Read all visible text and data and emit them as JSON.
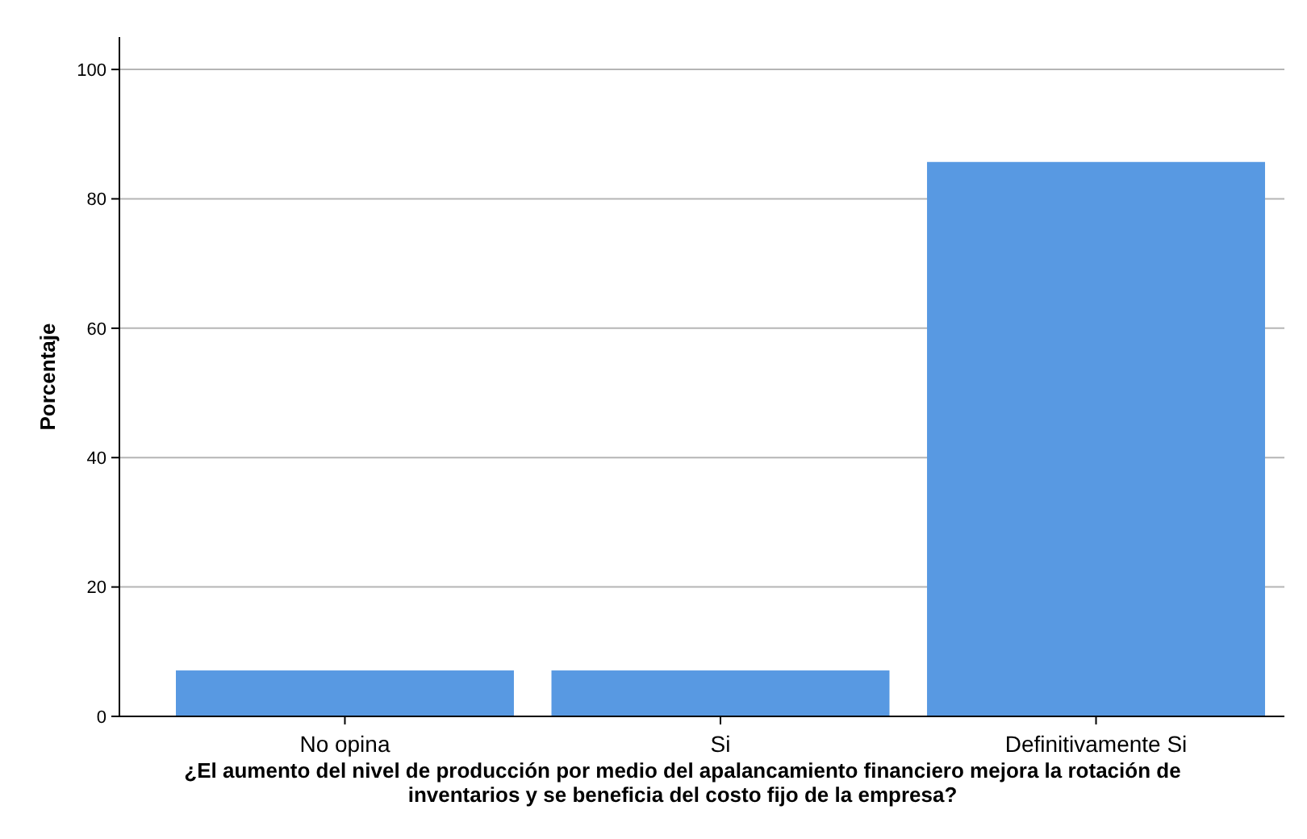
{
  "chart_data": {
    "type": "bar",
    "xlabel": "¿El aumento del nivel de producción por medio del apalancamiento financiero mejora la rotación de inventarios y se beneficia del costo fijo de la empresa?",
    "ylabel": "Porcentaje",
    "categories": [
      "No opina",
      "Si",
      "Definitivamente Si"
    ],
    "values": [
      7.1,
      7.1,
      85.7
    ],
    "color": "#5899e2",
    "ylim": [
      0,
      105
    ],
    "yticks": [
      0,
      20,
      40,
      60,
      80,
      100
    ],
    "grid": "y"
  }
}
